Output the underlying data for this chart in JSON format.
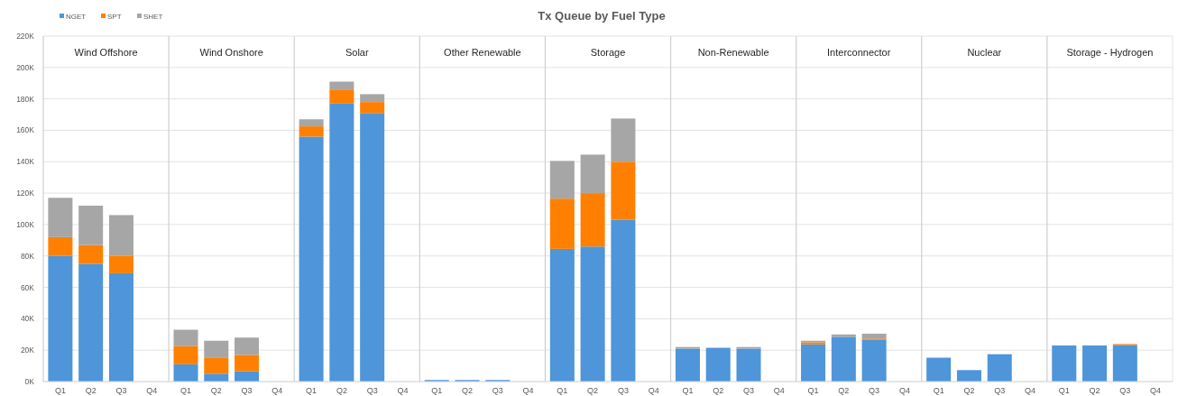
{
  "chart_data": {
    "type": "bar",
    "title": "Tx Queue by Fuel Type",
    "annotations": [
      "Wind Offshore",
      "Wind Onshore",
      "Solar",
      "Other Renewable",
      "Storage",
      "Non-Renewable",
      "Interconnector",
      "Nuclear",
      "Storage - Hydrogen"
    ],
    "categories": [
      "Q1",
      "Q2",
      "Q3",
      "Q4",
      "Q1",
      "Q2",
      "Q3",
      "Q4",
      "Q1",
      "Q2",
      "Q3",
      "Q4",
      "Q1",
      "Q2",
      "Q3",
      "Q4",
      "Q1",
      "Q2",
      "Q3",
      "Q4",
      "Q1",
      "Q2",
      "Q3",
      "Q4",
      "Q1",
      "Q2",
      "Q3",
      "Q4",
      "Q1",
      "Q2",
      "Q3",
      "Q4",
      "Q1",
      "Q2",
      "Q3",
      "Q4"
    ],
    "stacked": true,
    "legend": "top left",
    "grid": "y",
    "ylim": [
      0,
      220000
    ],
    "yticks": [
      {
        "value": 0,
        "label": "0K"
      },
      {
        "value": 20000,
        "label": "20K"
      },
      {
        "value": 40000,
        "label": "40K"
      },
      {
        "value": 60000,
        "label": "60K"
      },
      {
        "value": 80000,
        "label": "80K"
      },
      {
        "value": 100000,
        "label": "100K"
      },
      {
        "value": 120000,
        "label": "120K"
      },
      {
        "value": 140000,
        "label": "140K"
      },
      {
        "value": 160000,
        "label": "160K"
      },
      {
        "value": 180000,
        "label": "180K"
      },
      {
        "value": 200000,
        "label": "200K"
      },
      {
        "value": 220000,
        "label": "220K"
      }
    ],
    "series": [
      {
        "name": "NGET",
        "color": "#4e95d9",
        "values": [
          80000,
          75000,
          69000,
          null,
          11000,
          5000,
          6500,
          null,
          156000,
          177000,
          171000,
          null,
          1000,
          1000,
          1000,
          null,
          84500,
          86000,
          103000,
          null,
          21000,
          21500,
          21000,
          null,
          23700,
          28500,
          26800,
          null,
          15200,
          7300,
          17400,
          null,
          23000,
          23000,
          23300,
          null
        ]
      },
      {
        "name": "SPT",
        "color": "#ff8000",
        "values": [
          12000,
          12000,
          11000,
          null,
          11500,
          10000,
          10500,
          null,
          6500,
          9000,
          7000,
          null,
          null,
          null,
          null,
          null,
          32000,
          34000,
          37000,
          null,
          null,
          null,
          null,
          null,
          1300,
          null,
          600,
          null,
          null,
          null,
          null,
          null,
          null,
          null,
          600,
          null
        ]
      },
      {
        "name": "SHET",
        "color": "#a6a6a6",
        "values": [
          25000,
          25000,
          26000,
          null,
          10500,
          11000,
          11000,
          null,
          4500,
          5000,
          5000,
          null,
          null,
          null,
          null,
          null,
          24000,
          24500,
          27500,
          null,
          1000,
          null,
          1000,
          null,
          1000,
          1500,
          3100,
          null,
          null,
          null,
          null,
          null,
          null,
          null,
          null,
          null
        ]
      }
    ]
  }
}
